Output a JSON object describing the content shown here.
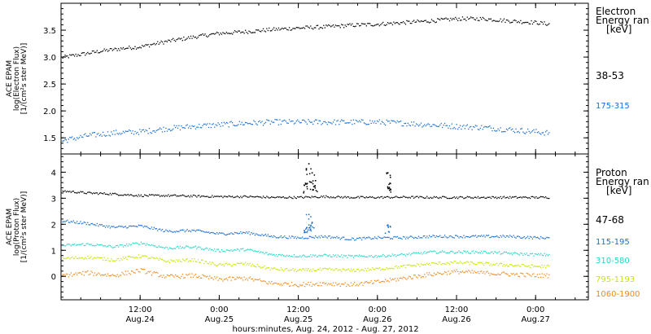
{
  "footer": {
    "xlabel": "hours:minutes, Aug. 24, 2012 - Aug. 27, 2012"
  },
  "x_ticks": [
    {
      "time": "12:00",
      "date": "Aug.24",
      "t_hours": 12
    },
    {
      "time": "0:00",
      "date": "Aug.25",
      "t_hours": 24
    },
    {
      "time": "12:00",
      "date": "Aug.25",
      "t_hours": 36
    },
    {
      "time": "0:00",
      "date": "Aug.26",
      "t_hours": 48
    },
    {
      "time": "12:00",
      "date": "Aug.26",
      "t_hours": 60
    },
    {
      "time": "0:00",
      "date": "Aug.27",
      "t_hours": 72
    }
  ],
  "chart_data": [
    {
      "type": "scatter",
      "ylabel_lines": [
        "ACE EPAM",
        "log(Electron Flux)",
        "[1/(cm²s ster MeV)]"
      ],
      "legend_title_lines": [
        "Electron",
        "Energy ran",
        "[keV]"
      ],
      "xlim": [
        0,
        80
      ],
      "ylim": [
        1.2,
        4.0
      ],
      "yticks": [
        "1.5",
        "2.0",
        "2.5",
        "3.0",
        "3.5"
      ],
      "series": [
        {
          "name": "38-53",
          "color": "#000000",
          "t": [
            0,
            2,
            4,
            6,
            8,
            10,
            12,
            16,
            20,
            24,
            28,
            32,
            36,
            40,
            44,
            48,
            52,
            56,
            60,
            64,
            68,
            72,
            74
          ],
          "y": [
            3.0,
            3.04,
            3.08,
            3.12,
            3.15,
            3.18,
            3.2,
            3.3,
            3.38,
            3.45,
            3.48,
            3.52,
            3.55,
            3.57,
            3.6,
            3.62,
            3.65,
            3.68,
            3.72,
            3.72,
            3.68,
            3.65,
            3.62
          ],
          "noise": 0.035
        },
        {
          "name": "175-315",
          "color": "#1a6fd0",
          "t": [
            0,
            4,
            8,
            12,
            16,
            20,
            24,
            28,
            32,
            36,
            40,
            44,
            48,
            52,
            56,
            60,
            64,
            68,
            72,
            74
          ],
          "y": [
            1.45,
            1.55,
            1.6,
            1.62,
            1.68,
            1.72,
            1.75,
            1.78,
            1.8,
            1.8,
            1.8,
            1.8,
            1.8,
            1.78,
            1.75,
            1.72,
            1.7,
            1.66,
            1.62,
            1.6
          ],
          "noise": 0.05
        }
      ]
    },
    {
      "type": "scatter",
      "ylabel_lines": [
        "ACE EPAM",
        "log(Proton Flux)",
        "[1/(cm²s ster MeV)]"
      ],
      "legend_title_lines": [
        "Proton",
        "Energy ran",
        "[keV]"
      ],
      "xlim": [
        0,
        80
      ],
      "ylim": [
        -0.9,
        4.7
      ],
      "yticks": [
        "0",
        "1",
        "2",
        "3",
        "4"
      ],
      "series": [
        {
          "name": "47-68",
          "color": "#000000",
          "t": [
            0,
            4,
            8,
            12,
            16,
            20,
            24,
            28,
            32,
            36,
            40,
            44,
            48,
            52,
            56,
            60,
            64,
            68,
            72,
            74
          ],
          "y": [
            3.3,
            3.22,
            3.18,
            3.12,
            3.12,
            3.1,
            3.08,
            3.08,
            3.05,
            3.05,
            3.08,
            3.05,
            3.05,
            3.06,
            3.05,
            3.05,
            3.05,
            3.05,
            3.05,
            3.05
          ],
          "noise": 0.04,
          "spikes": [
            {
              "t": 37.5,
              "y": 4.35
            },
            {
              "t": 38.0,
              "y": 4.0
            },
            {
              "t": 38.5,
              "y": 3.7
            },
            {
              "t": 37.0,
              "y": 3.6
            },
            {
              "t": 49.5,
              "y": 4.0
            },
            {
              "t": 49.8,
              "y": 3.6
            }
          ]
        },
        {
          "name": "115-195",
          "color": "#1a6fd0",
          "t": [
            0,
            4,
            8,
            12,
            16,
            20,
            24,
            28,
            32,
            36,
            40,
            44,
            48,
            52,
            56,
            60,
            64,
            68,
            72,
            74
          ],
          "y": [
            2.15,
            2.05,
            1.9,
            1.95,
            1.75,
            1.78,
            1.65,
            1.7,
            1.55,
            1.5,
            1.55,
            1.45,
            1.5,
            1.5,
            1.55,
            1.55,
            1.55,
            1.55,
            1.5,
            1.5
          ],
          "noise": 0.05,
          "spikes": [
            {
              "t": 37.5,
              "y": 2.4
            },
            {
              "t": 38.0,
              "y": 2.1
            },
            {
              "t": 37.2,
              "y": 1.9
            },
            {
              "t": 49.5,
              "y": 2.0
            }
          ]
        },
        {
          "name": "310-580",
          "color": "#29d6c8",
          "t": [
            0,
            4,
            8,
            12,
            16,
            20,
            24,
            28,
            32,
            36,
            40,
            44,
            48,
            52,
            56,
            60,
            64,
            68,
            72,
            74
          ],
          "y": [
            1.2,
            1.25,
            1.15,
            1.3,
            1.1,
            1.15,
            1.0,
            1.05,
            0.85,
            0.8,
            0.82,
            0.78,
            0.8,
            0.85,
            0.95,
            0.95,
            0.95,
            0.9,
            0.85,
            0.85
          ],
          "noise": 0.05
        },
        {
          "name": "795-1193",
          "color": "#c8e600",
          "t": [
            0,
            4,
            8,
            12,
            16,
            20,
            24,
            28,
            32,
            36,
            40,
            44,
            48,
            52,
            56,
            60,
            64,
            68,
            72,
            74
          ],
          "y": [
            0.7,
            0.75,
            0.65,
            0.8,
            0.6,
            0.65,
            0.45,
            0.5,
            0.3,
            0.25,
            0.28,
            0.25,
            0.3,
            0.4,
            0.5,
            0.55,
            0.5,
            0.45,
            0.4,
            0.4
          ],
          "noise": 0.06
        },
        {
          "name": "1060-1900",
          "color": "#f08a1c",
          "t": [
            0,
            4,
            8,
            12,
            16,
            20,
            24,
            28,
            32,
            36,
            40,
            44,
            48,
            52,
            56,
            60,
            64,
            68,
            72,
            74
          ],
          "y": [
            0.05,
            0.15,
            0.05,
            0.25,
            0.0,
            0.05,
            -0.1,
            -0.05,
            -0.25,
            -0.3,
            -0.25,
            -0.3,
            -0.2,
            -0.05,
            0.1,
            0.2,
            0.15,
            0.1,
            0.05,
            0.05
          ],
          "noise": 0.08
        }
      ]
    }
  ]
}
